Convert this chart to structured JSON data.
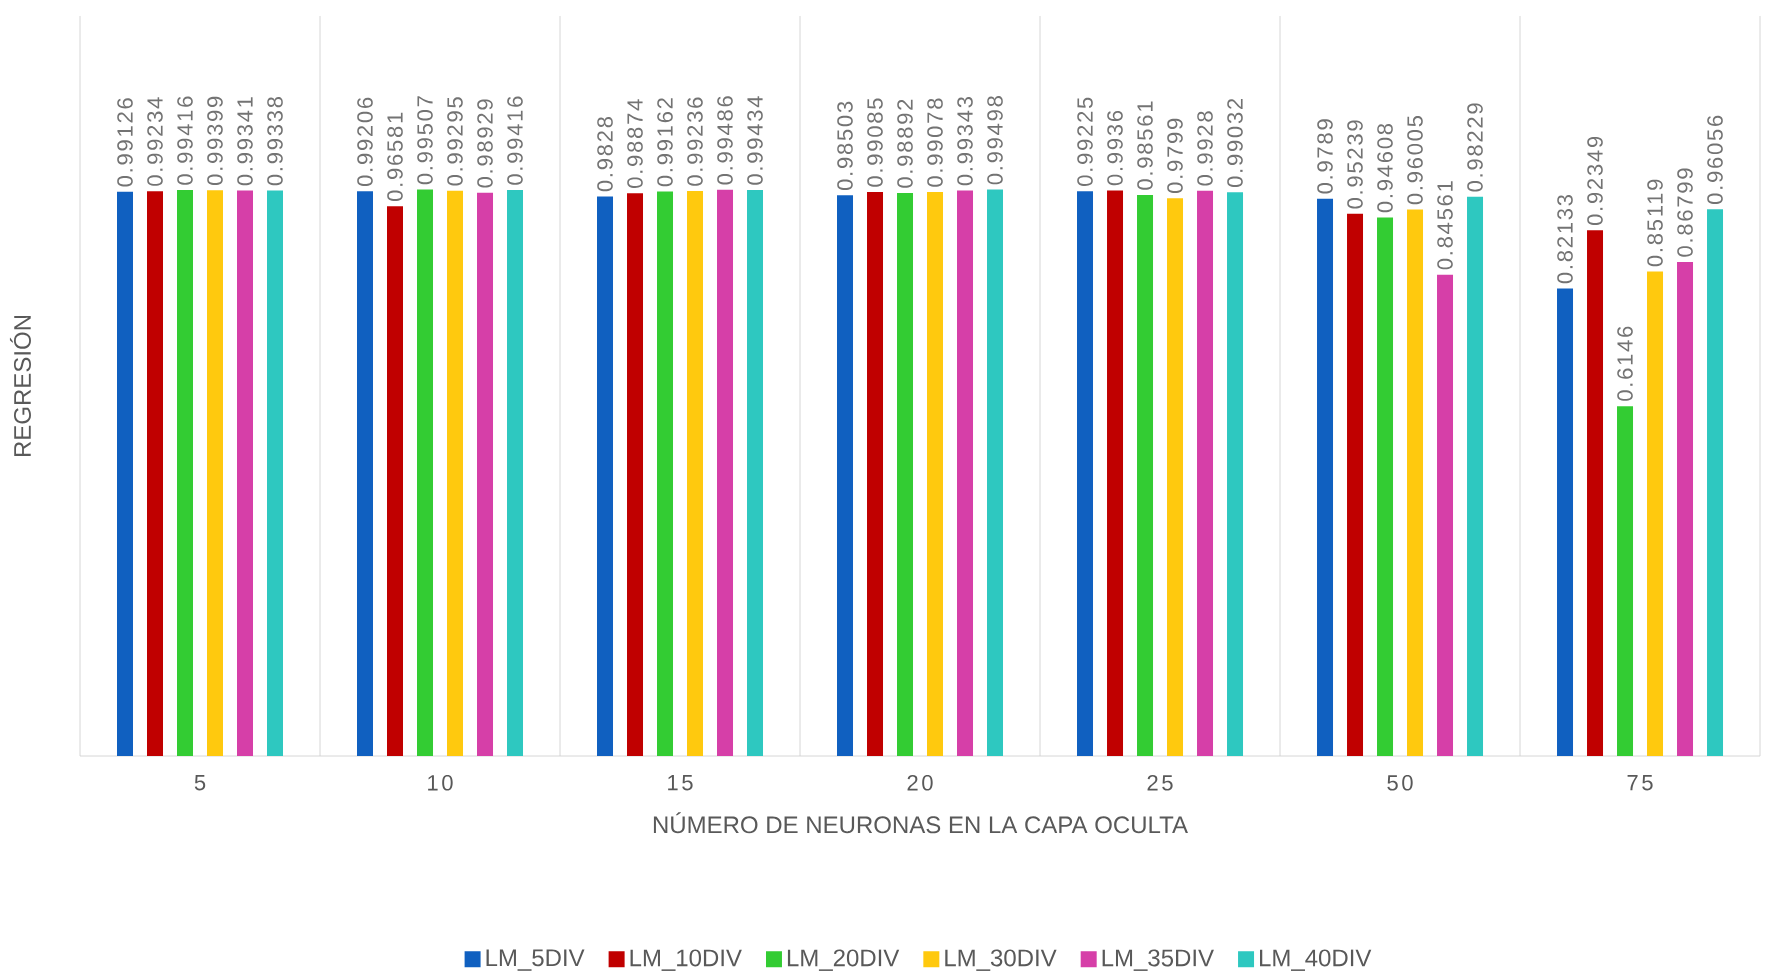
{
  "chart_data": {
    "type": "bar",
    "xlabel": "NÚMERO DE NEURONAS EN LA CAPA OCULTA",
    "ylabel": "REGRESIÓN",
    "categories": [
      "5",
      "10",
      "15",
      "20",
      "25",
      "50",
      "75"
    ],
    "series": [
      {
        "name": "LM_5DIV",
        "color": "#1060c0",
        "values": [
          0.99126,
          0.99206,
          0.9828,
          0.98503,
          0.99225,
          0.9789,
          0.82133
        ]
      },
      {
        "name": "LM_10DIV",
        "color": "#c00000",
        "values": [
          0.99234,
          0.96581,
          0.98874,
          0.99085,
          0.9936,
          0.95239,
          0.92349
        ]
      },
      {
        "name": "LM_20DIV",
        "color": "#33cc33",
        "values": [
          0.99416,
          0.99507,
          0.99162,
          0.98892,
          0.98561,
          0.94608,
          0.6146
        ]
      },
      {
        "name": "LM_30DIV",
        "color": "#ffc90e",
        "values": [
          0.99399,
          0.99295,
          0.99236,
          0.99078,
          0.9799,
          0.96005,
          0.85119
        ]
      },
      {
        "name": "LM_35DIV",
        "color": "#d63fa8",
        "values": [
          0.99341,
          0.98929,
          0.99486,
          0.99343,
          0.9928,
          0.84561,
          0.86799
        ]
      },
      {
        "name": "LM_40DIV",
        "color": "#2ec8c0",
        "values": [
          0.99338,
          0.99416,
          0.99434,
          0.99498,
          0.99032,
          0.98229,
          0.96056
        ]
      }
    ],
    "ylim": [
      0,
      1.3
    ],
    "data_labels": true,
    "grid": "x",
    "legend": "bottom",
    "tick_labels": "x"
  }
}
